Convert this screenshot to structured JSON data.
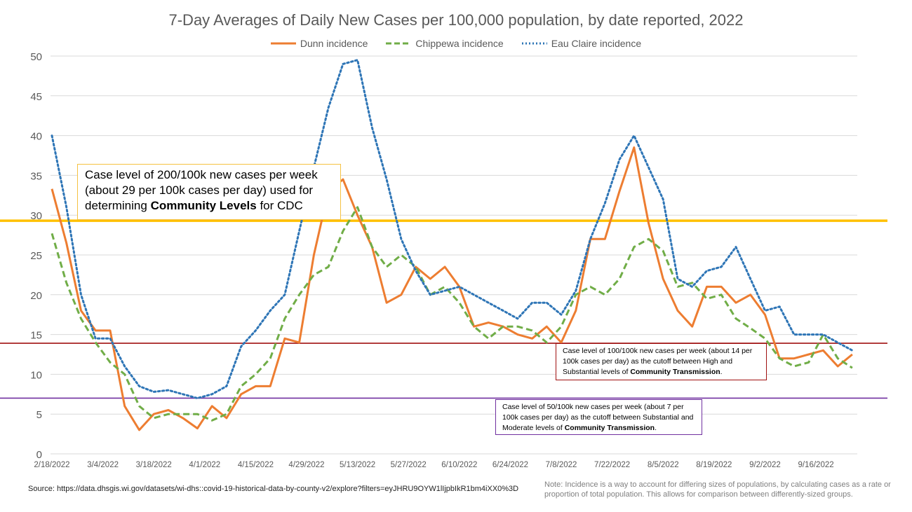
{
  "chart_data": {
    "type": "line",
    "title": "7-Day Averages of Daily New Cases per 100,000 population, by date reported, 2022",
    "xlabel": "",
    "ylabel": "",
    "ylim": [
      0,
      50
    ],
    "yticks": [
      "0",
      "5",
      "10",
      "15",
      "20",
      "25",
      "30",
      "35",
      "40",
      "45",
      "50"
    ],
    "xticks": [
      "2/18/2022",
      "3/4/2022",
      "3/18/2022",
      "4/1/2022",
      "4/15/2022",
      "4/29/2022",
      "5/13/2022",
      "5/27/2022",
      "6/10/2022",
      "6/24/2022",
      "7/8/2022",
      "7/22/2022",
      "8/5/2022",
      "8/19/2022",
      "9/2/2022",
      "9/16/2022"
    ],
    "grid": true,
    "legend_position": "top",
    "x": [
      "2022-02-18",
      "2022-02-22",
      "2022-02-26",
      "2022-03-02",
      "2022-03-06",
      "2022-03-10",
      "2022-03-14",
      "2022-03-18",
      "2022-03-22",
      "2022-03-26",
      "2022-03-30",
      "2022-04-03",
      "2022-04-07",
      "2022-04-11",
      "2022-04-15",
      "2022-04-19",
      "2022-04-23",
      "2022-04-27",
      "2022-05-01",
      "2022-05-05",
      "2022-05-09",
      "2022-05-13",
      "2022-05-17",
      "2022-05-21",
      "2022-05-25",
      "2022-05-29",
      "2022-06-02",
      "2022-06-06",
      "2022-06-10",
      "2022-06-14",
      "2022-06-18",
      "2022-06-22",
      "2022-06-26",
      "2022-06-30",
      "2022-07-04",
      "2022-07-08",
      "2022-07-12",
      "2022-07-16",
      "2022-07-20",
      "2022-07-24",
      "2022-07-28",
      "2022-08-01",
      "2022-08-05",
      "2022-08-09",
      "2022-08-13",
      "2022-08-17",
      "2022-08-21",
      "2022-08-25",
      "2022-08-29",
      "2022-09-02",
      "2022-09-06",
      "2022-09-10",
      "2022-09-14",
      "2022-09-18",
      "2022-09-22",
      "2022-09-26"
    ],
    "series": [
      {
        "name": "Dunn incidence",
        "color": "#ed7d31",
        "style": "solid",
        "values": [
          33.3,
          26.5,
          18,
          15.5,
          15.5,
          6,
          3,
          5,
          5.5,
          4.5,
          3.2,
          6,
          4.5,
          7.5,
          8.5,
          8.5,
          14.5,
          14,
          25,
          33,
          34.5,
          30,
          26,
          19,
          20,
          23.5,
          22,
          23.5,
          21,
          16,
          16.5,
          16,
          15,
          14.5,
          16,
          14,
          18,
          27,
          27,
          33,
          38.5,
          29,
          22,
          18,
          16,
          21,
          21,
          19,
          20,
          17.5,
          12,
          12,
          12.5,
          13,
          11,
          12.5
        ]
      },
      {
        "name": "Chippewa incidence",
        "color": "#70ad47",
        "style": "dashed",
        "values": [
          27.7,
          21.5,
          17,
          14,
          11.5,
          10,
          6,
          4.5,
          5,
          5,
          5,
          4.2,
          5,
          8.5,
          10,
          12,
          17,
          20,
          22.5,
          23.5,
          28,
          31,
          26,
          23.5,
          25,
          23.5,
          20,
          21,
          19,
          16,
          14.5,
          16,
          16,
          15.5,
          14,
          16,
          20,
          21,
          20,
          22,
          26,
          27,
          25.5,
          21,
          21.5,
          19.5,
          20,
          17,
          15.8,
          14.5,
          12,
          11,
          11.5,
          15,
          12,
          10.8
        ]
      },
      {
        "name": "Eau Claire incidence",
        "color": "#2e75b6",
        "style": "dotted",
        "values": [
          40,
          31,
          20,
          14.5,
          14.5,
          11,
          8.5,
          7.8,
          8,
          7.5,
          7,
          7.5,
          8.5,
          13.5,
          15.5,
          18,
          20,
          28,
          36,
          43.5,
          49,
          49.5,
          41,
          34.5,
          27,
          23,
          20,
          20.5,
          21,
          20,
          19,
          18,
          17,
          19,
          19,
          17.5,
          20.5,
          27,
          31.5,
          37,
          40,
          36,
          32,
          22,
          21,
          23,
          23.5,
          26,
          22,
          18,
          18.5,
          15,
          15,
          15,
          14,
          13
        ]
      }
    ],
    "reference_lines": [
      {
        "value": 29.3,
        "color": "#ffc000"
      },
      {
        "value": 13.9,
        "color": "#a01010"
      },
      {
        "value": 7,
        "color": "#7030a0"
      }
    ],
    "annotations": {
      "community_levels": {
        "pre": "Case level of 200/100k new cases per week (about 29 per 100k cases per day) used for determining ",
        "bold": "Community Levels",
        "post": " for CDC"
      },
      "high_substantial": {
        "pre": "Case level of 100/100k new cases per week (about 14 per 100k cases per day) as the cutoff between High and Substantial levels of ",
        "bold": "Community Transmission",
        "post": "."
      },
      "substantial_moderate": {
        "pre": "Case level of 50/100k new cases per week (about 7 per 100k cases per day) as the cutoff between Substantial and Moderate levels of ",
        "bold": "Community Transmission",
        "post": "."
      }
    }
  },
  "footer": {
    "source": "Source: https://data.dhsgis.wi.gov/datasets/wi-dhs::covid-19-historical-data-by-county-v2/explore?filters=eyJHRU9OYW1lIjpbIkR1bm4iXX0%3D",
    "note": "Note:  Incidence is a way to account for differing sizes of populations, by calculating cases as a rate or proportion of total population.  This allows for comparison between differently-sized groups."
  }
}
